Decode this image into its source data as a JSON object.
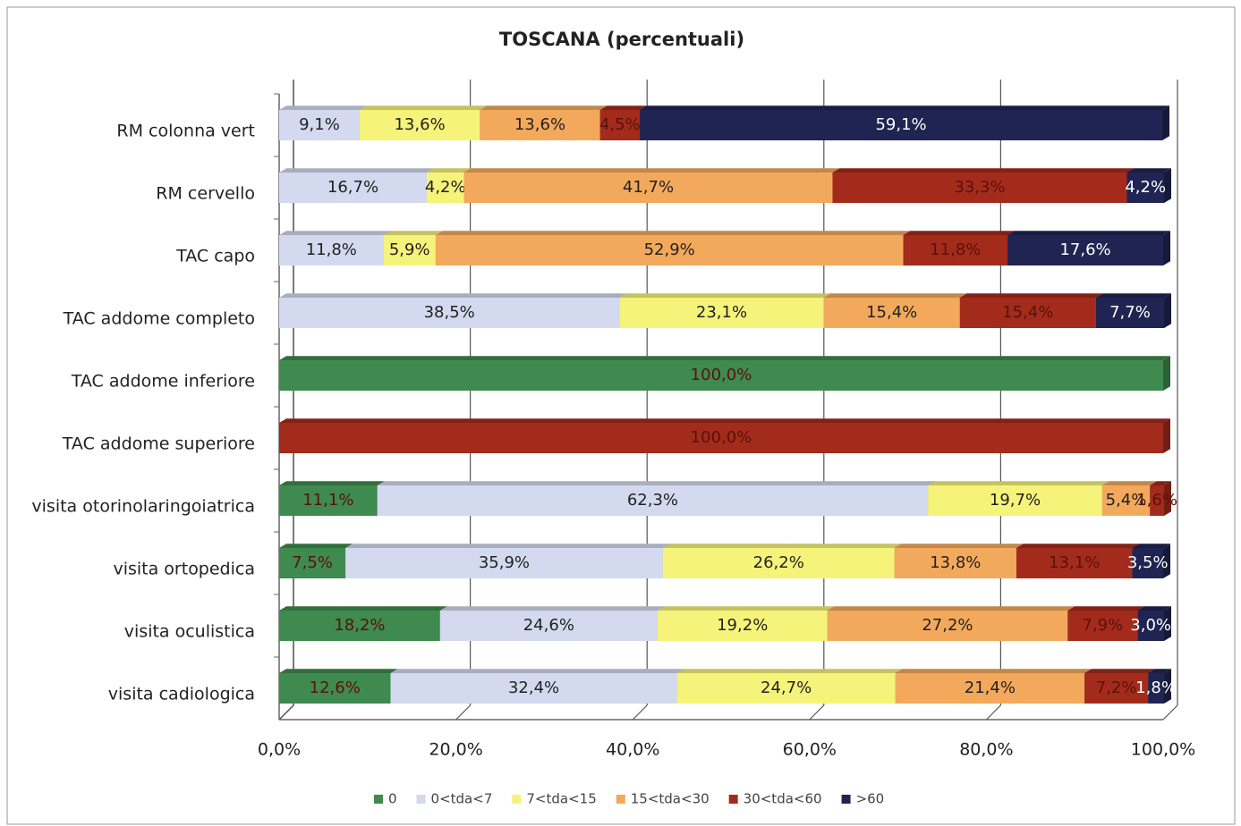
{
  "chart_data": {
    "type": "stacked_bar_horizontal",
    "title": "TOSCANA (percentuali)",
    "categories": [
      "RM colonna vert",
      "RM cervello",
      "TAC capo",
      "TAC addome completo",
      "TAC addome inferiore",
      "TAC addome superiore",
      "visita otorinolaringoiatrica",
      "visita ortopedica",
      "visita oculistica",
      "visita cadiologica"
    ],
    "series": [
      {
        "name": "0",
        "color": "#3f8a4e",
        "values": [
          null,
          null,
          null,
          null,
          100,
          null,
          11.1,
          7.5,
          18.2,
          12.6
        ],
        "value_labels": [
          null,
          null,
          null,
          null,
          "100,0%",
          null,
          "11,1%",
          "7,5%",
          "18,2%",
          "12,6%"
        ]
      },
      {
        "name": "0<tda<7",
        "color": "#d3d9ee",
        "values": [
          9.1,
          16.7,
          11.8,
          38.5,
          null,
          null,
          62.3,
          35.9,
          24.6,
          32.4
        ],
        "value_labels": [
          "9,1%",
          "16,7%",
          "11,8%",
          "38,5%",
          null,
          null,
          "62,3%",
          "35,9%",
          "24,6%",
          "32,4%"
        ]
      },
      {
        "name": "7<tda<15",
        "color": "#f6f37a",
        "values": [
          13.6,
          4.2,
          5.9,
          23.1,
          null,
          null,
          19.7,
          26.2,
          19.2,
          24.7
        ],
        "value_labels": [
          "13,6%",
          "4,2%",
          "5,9%",
          "23,1%",
          null,
          null,
          "19,7%",
          "26,2%",
          "19,2%",
          "24,7%"
        ]
      },
      {
        "name": "15<tda<30",
        "color": "#f3a95c",
        "values": [
          13.6,
          41.7,
          52.9,
          15.4,
          null,
          null,
          5.4,
          13.8,
          27.2,
          21.4
        ],
        "value_labels": [
          "13,6%",
          "41,7%",
          "52,9%",
          "15,4%",
          null,
          null,
          "5,4%",
          "13,8%",
          "27,2%",
          "21,4%"
        ]
      },
      {
        "name": "30<tda<60",
        "color": "#a32b1c",
        "values": [
          4.5,
          33.3,
          11.8,
          15.4,
          null,
          100,
          1.6,
          13.1,
          7.9,
          7.2
        ],
        "value_labels": [
          "4,5%",
          "33,3%",
          "11,8%",
          "15,4%",
          null,
          "100,0%",
          "1,6%",
          "13,1%",
          "7,9%",
          "7,2%"
        ]
      },
      {
        "name": ">60",
        "color": "#1f2452",
        "values": [
          59.1,
          4.2,
          17.6,
          7.7,
          null,
          null,
          null,
          3.5,
          3.0,
          1.8
        ],
        "value_labels": [
          "59,1%",
          "4,2%",
          "17,6%",
          "7,7%",
          null,
          null,
          null,
          "3,5%",
          "3,0%",
          "1,8%"
        ]
      }
    ],
    "xlim": [
      0,
      100
    ],
    "xticks": [
      {
        "value": 0,
        "label": "0,0%"
      },
      {
        "value": 20,
        "label": "20,0%"
      },
      {
        "value": 40,
        "label": "40,0%"
      },
      {
        "value": 60,
        "label": "60,0%"
      },
      {
        "value": 80,
        "label": "80,0%"
      },
      {
        "value": 100,
        "label": "100,0%"
      }
    ],
    "grid": true,
    "legend": "bottom"
  }
}
